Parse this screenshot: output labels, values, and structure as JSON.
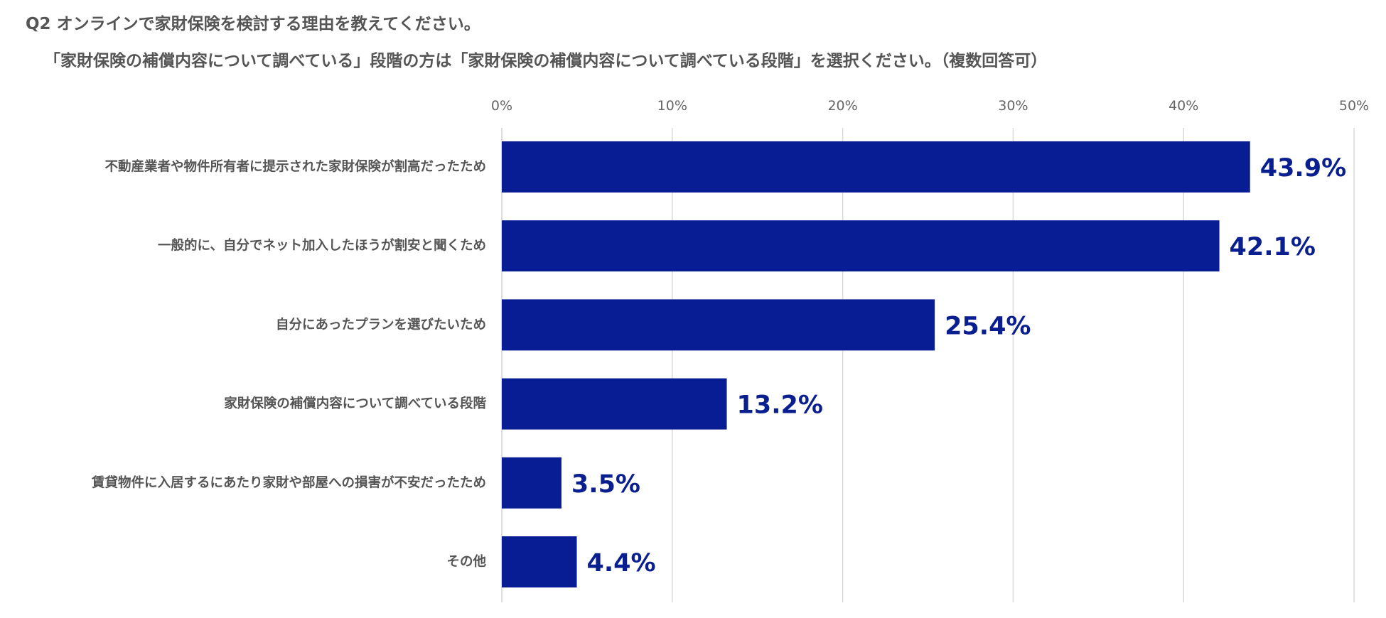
{
  "question": {
    "line1": "Q2 オンラインで家財保険を検討する理由を教えてください。",
    "line2": "「家財保険の補償内容について調べている」段階の方は「家財保険の補償内容について調べている段階」を選択ください。（複数回答可）"
  },
  "chart_data": {
    "type": "bar",
    "orientation": "horizontal",
    "categories": [
      "不動産業者や物件所有者に提示された家財保険が割高だったため",
      "一般的に、自分でネット加入したほうが割安と聞くため",
      "自分にあったプランを選びたいため",
      "家財保険の補償内容について調べている段階",
      "賃貸物件に入居するにあたり家財や部屋への損害が不安だったため",
      "その他"
    ],
    "values": [
      43.9,
      42.1,
      25.4,
      13.2,
      3.5,
      4.4
    ],
    "value_labels": [
      "43.9%",
      "42.1%",
      "25.4%",
      "13.2%",
      "3.5%",
      "4.4%"
    ],
    "xlim": [
      0,
      50
    ],
    "ticks": [
      0,
      10,
      20,
      30,
      40,
      50
    ],
    "tick_labels": [
      "0%",
      "10%",
      "20%",
      "30%",
      "40%",
      "50%"
    ],
    "axis_position": "top",
    "grid": true,
    "bar_color": "#081d94",
    "label_color": "#0a1f8f"
  }
}
